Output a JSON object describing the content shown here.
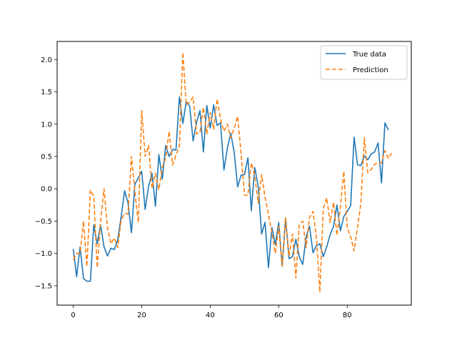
{
  "chart_data": {
    "type": "line",
    "title": "",
    "xlabel": "",
    "ylabel": "",
    "xlim": [
      -4.7,
      98.7
    ],
    "ylim": [
      -1.8,
      2.28
    ],
    "xticks": [
      0,
      20,
      40,
      60,
      80
    ],
    "yticks": [
      -1.5,
      -1.0,
      -0.5,
      0.0,
      0.5,
      1.0,
      1.5,
      2.0
    ],
    "xtick_labels": [
      "0",
      "20",
      "40",
      "60",
      "80"
    ],
    "ytick_labels": [
      "−1.5",
      "−1.0",
      "−0.5",
      "0.0",
      "0.5",
      "1.0",
      "1.5",
      "2.0"
    ],
    "grid": false,
    "legend_position": "top-right",
    "series": [
      {
        "name": "True data",
        "color": "#1f77b4",
        "dash": "solid",
        "values": [
          -0.93,
          -1.36,
          -0.9,
          -1.39,
          -1.43,
          -1.43,
          -0.56,
          -0.85,
          -0.56,
          -0.9,
          -1.04,
          -0.92,
          -0.94,
          -0.79,
          -0.43,
          -0.03,
          -0.22,
          -0.68,
          0.07,
          0.17,
          0.27,
          -0.32,
          0.04,
          0.24,
          -0.27,
          0.53,
          0.15,
          0.67,
          0.5,
          0.61,
          0.6,
          1.42,
          1.01,
          1.35,
          1.28,
          0.74,
          1.03,
          1.21,
          0.57,
          1.29,
          0.94,
          1.3,
          0.98,
          1.02,
          0.29,
          0.63,
          0.86,
          0.56,
          0.03,
          0.21,
          0.22,
          0.48,
          -0.34,
          0.33,
          0.04,
          -0.7,
          -0.52,
          -1.22,
          -0.6,
          -0.86,
          -0.52,
          -1.2,
          -0.45,
          -1.08,
          -1.05,
          -0.78,
          -1.05,
          -1.17,
          -0.74,
          -0.58,
          -0.99,
          -0.88,
          -0.85,
          -1.05,
          -0.9,
          -0.71,
          -0.58,
          -0.25,
          -0.65,
          -0.43,
          -0.35,
          -0.26,
          0.8,
          0.37,
          0.36,
          0.51,
          0.45,
          0.54,
          0.57,
          0.71,
          0.09,
          1.02,
          0.91
        ]
      },
      {
        "name": "Prediction",
        "color": "#ff7f0e",
        "dash": "dashed",
        "values": [
          -1.1,
          -1.0,
          -1.0,
          -0.5,
          -1.2,
          -0.02,
          -0.12,
          -1.22,
          -0.5,
          0.0,
          -0.6,
          -0.85,
          -0.76,
          -0.91,
          -0.48,
          -0.38,
          -0.39,
          0.5,
          -0.05,
          -0.52,
          1.21,
          0.5,
          0.67,
          0.01,
          0.24,
          -0.01,
          0.33,
          0.48,
          0.89,
          0.37,
          0.52,
          0.66,
          2.11,
          1.3,
          1.34,
          1.42,
          0.85,
          0.87,
          1.26,
          0.85,
          1.18,
          0.92,
          1.39,
          1.08,
          0.89,
          1.0,
          0.79,
          0.94,
          1.12,
          0.55,
          -0.1,
          -0.1,
          0.4,
          0.2,
          -0.22,
          0.22,
          -0.13,
          -0.4,
          -0.67,
          -1.0,
          -0.58,
          -1.2,
          -0.45,
          -1.04,
          -0.7,
          -1.38,
          -0.55,
          -0.5,
          -0.91,
          -0.44,
          -0.35,
          -0.75,
          -1.6,
          -0.31,
          -0.14,
          -0.52,
          -0.21,
          -0.72,
          -0.28,
          0.27,
          -0.61,
          -0.74,
          -0.96,
          -0.6,
          -0.21,
          0.79,
          0.25,
          0.3,
          0.38,
          0.4,
          0.4,
          0.59,
          0.47,
          0.55
        ]
      }
    ]
  }
}
